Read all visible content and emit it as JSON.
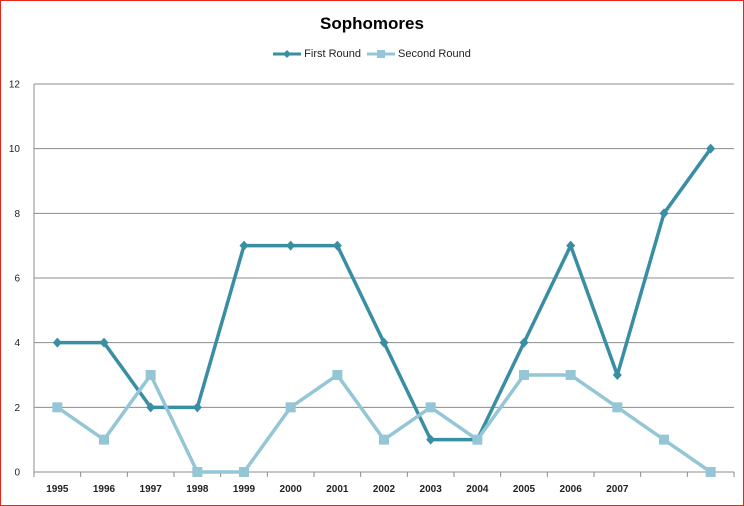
{
  "chart_data": {
    "type": "line",
    "title": "Sophomores",
    "xlabel": "",
    "ylabel": "",
    "categories": [
      "1995",
      "1996",
      "1997",
      "1998",
      "1999",
      "2000",
      "2001",
      "2002",
      "2003",
      "2004",
      "2005",
      "2006",
      "2007",
      "",
      ""
    ],
    "ylim": [
      0,
      12
    ],
    "yticks": [
      "0",
      "2",
      "4",
      "6",
      "8",
      "10",
      "12"
    ],
    "grid": true,
    "legend_position": "top",
    "series": [
      {
        "name": "First Round",
        "color": "#3a8ea4",
        "marker": "diamond",
        "values": [
          4,
          4,
          2,
          2,
          7,
          7,
          7,
          4,
          1,
          1,
          4,
          7,
          3,
          8,
          10
        ]
      },
      {
        "name": "Second Round",
        "color": "#94c6d6",
        "marker": "square",
        "values": [
          2,
          1,
          3,
          0,
          0,
          2,
          3,
          1,
          2,
          1,
          3,
          3,
          2,
          1,
          0
        ]
      }
    ]
  }
}
